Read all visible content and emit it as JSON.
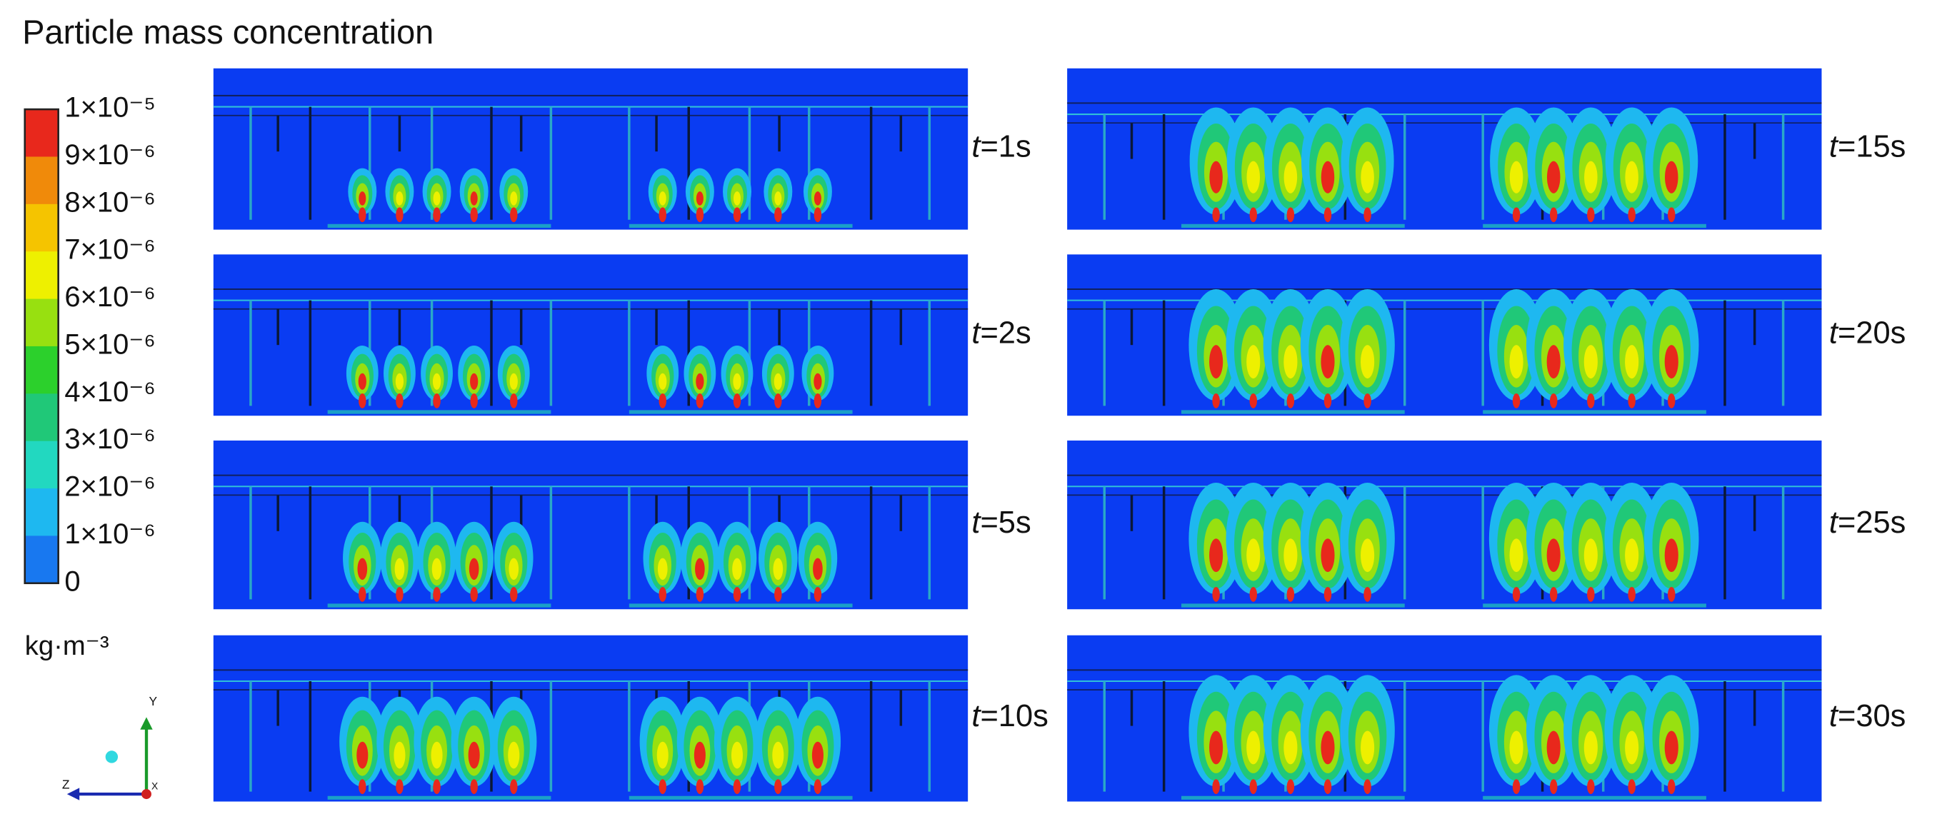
{
  "title": "Particle mass concentration",
  "colorbar": {
    "labels": [
      "1×10⁻⁵",
      "9×10⁻⁶",
      "8×10⁻⁶",
      "7×10⁻⁶",
      "6×10⁻⁶",
      "5×10⁻⁶",
      "4×10⁻⁶",
      "3×10⁻⁶",
      "2×10⁻⁶",
      "1×10⁻⁶",
      "0"
    ],
    "colors": [
      "#e8281c",
      "#f08a0a",
      "#f5c400",
      "#eef000",
      "#98e010",
      "#2cd02c",
      "#20c878",
      "#22d8c0",
      "#1eb8f0",
      "#1878f0"
    ],
    "base_color": "#0a3cf2",
    "unit": "kg·m⁻³"
  },
  "axes_triad": {
    "y": "Y",
    "z": "Z",
    "x": "X"
  },
  "panels": [
    {
      "variable": "t",
      "rest": "=1s"
    },
    {
      "variable": "t",
      "rest": "=2s"
    },
    {
      "variable": "t",
      "rest": "=5s"
    },
    {
      "variable": "t",
      "rest": "=10s"
    },
    {
      "variable": "t",
      "rest": "=15s"
    },
    {
      "variable": "t",
      "rest": "=20s"
    },
    {
      "variable": "t",
      "rest": "=25s"
    },
    {
      "variable": "t",
      "rest": "=30s"
    }
  ]
}
